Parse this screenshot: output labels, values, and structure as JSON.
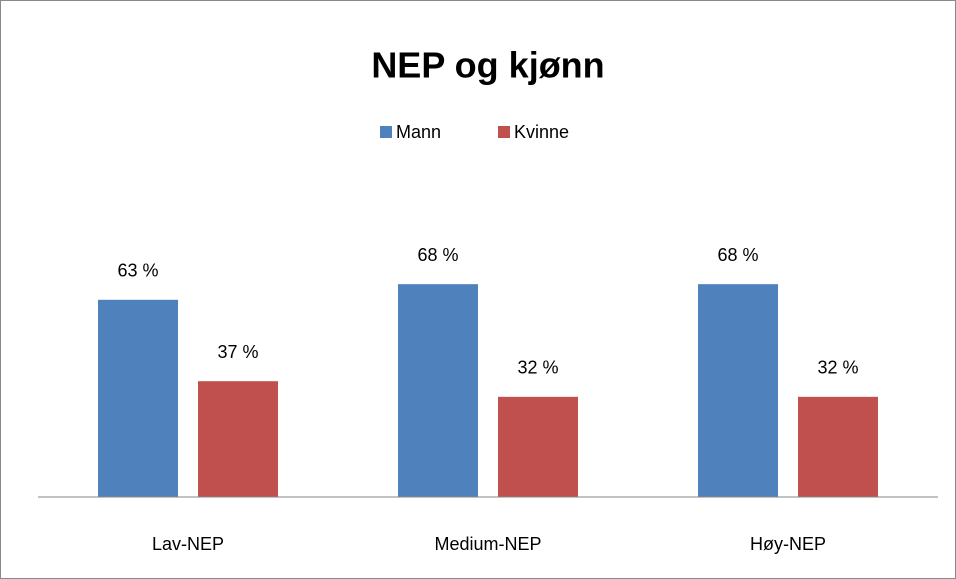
{
  "chart_data": {
    "type": "bar",
    "title": "NEP og kjønn",
    "categories": [
      "Lav-NEP",
      "Medium-NEP",
      "Høy-NEP"
    ],
    "series": [
      {
        "name": "Mann",
        "color": "#4f81bd",
        "values": [
          63,
          68,
          68
        ],
        "value_labels": [
          "63 %",
          "68 %",
          "68 %"
        ]
      },
      {
        "name": "Kvinne",
        "color": "#c0504d",
        "values": [
          37,
          32,
          32
        ],
        "value_labels": [
          "37 %",
          "32 %",
          "32 %"
        ]
      }
    ],
    "ylim": [
      0,
      100
    ],
    "legend": "top"
  }
}
